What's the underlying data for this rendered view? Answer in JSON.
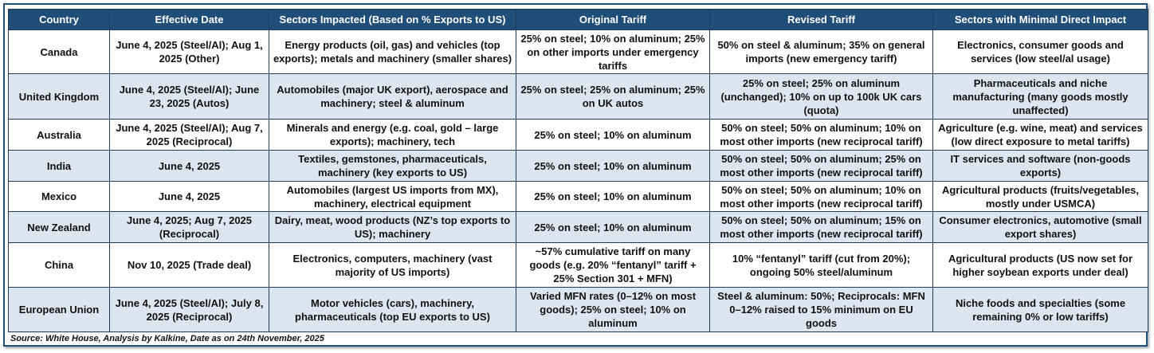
{
  "headers": [
    "Country",
    "Effective Date",
    "Sectors Impacted (Based on % Exports to US)",
    "Original Tariff",
    "Revised Tariff",
    "Sectors with Minimal Direct Impact"
  ],
  "rows": [
    {
      "country": "Canada",
      "date": "June 4, 2025 (Steel/Al); Aug 1, 2025 (Other)",
      "sectors": "Energy products (oil, gas) and vehicles (top exports); metals and machinery (smaller shares)",
      "original": "25% on steel; 10% on aluminum; 25% on other imports under emergency tariffs",
      "revised": "50% on steel & aluminum; 35% on general imports (new emergency tariff)",
      "minimal": "Electronics, consumer goods and services (low steel/al usage)"
    },
    {
      "country": "United Kingdom",
      "date": "June 4, 2025 (Steel/Al); June 23, 2025 (Autos)",
      "sectors": "Automobiles (major UK export), aerospace and machinery; steel & aluminum",
      "original": "25% on steel; 25% on aluminum; 25% on UK autos",
      "revised": "25% on steel; 25% on aluminum (unchanged); 10% on up to 100k UK cars (quota)",
      "minimal": "Pharmaceuticals and niche manufacturing (many goods mostly unaffected)"
    },
    {
      "country": "Australia",
      "date": "June 4, 2025 (Steel/Al); Aug 7, 2025 (Reciprocal)",
      "sectors": "Minerals and energy (e.g. coal, gold – large exports); machinery, tech",
      "original": "25% on steel; 10% on aluminum",
      "revised": "50% on steel; 50% on aluminum; 10% on most other imports (new reciprocal tariff)",
      "minimal": "Agriculture (e.g. wine, meat) and services (low direct exposure to metal tariffs)"
    },
    {
      "country": "India",
      "date": "June 4, 2025",
      "sectors": "Textiles, gemstones, pharmaceuticals, machinery (key exports to US)",
      "original": "25% on steel; 10% on aluminum",
      "revised": "50% on steel; 50% on aluminum; 25% on most other imports (new reciprocal tariff)",
      "minimal": "IT services and software (non-goods exports)"
    },
    {
      "country": "Mexico",
      "date": "June 4, 2025",
      "sectors": "Automobiles (largest US imports from MX), machinery, electrical equipment",
      "original": "25% on steel; 10% on aluminum",
      "revised": "50% on steel; 50% on aluminum; 10% on most other imports (new reciprocal tariff)",
      "minimal": "Agricultural products (fruits/vegetables, mostly under USMCA)"
    },
    {
      "country": "New Zealand",
      "date": "June 4, 2025; Aug 7, 2025 (Reciprocal)",
      "sectors": "Dairy, meat, wood products (NZ’s top exports to US); machinery",
      "original": "25% on steel; 10% on aluminum",
      "revised": "50% on steel; 50% on aluminum; 15% on most other imports (new reciprocal tariff)",
      "minimal": "Consumer electronics, automotive (small export shares)"
    },
    {
      "country": "China",
      "date": "Nov 10, 2025 (Trade deal)",
      "sectors": "Electronics, computers, machinery (vast majority of US imports)",
      "original": "~57% cumulative tariff on many goods (e.g. 20% “fentanyl” tariff + 25% Section 301 + MFN)",
      "revised": "10% “fentanyl” tariff (cut from 20%); ongoing 50% steel/aluminum",
      "minimal": "Agricultural products (US now set for higher soybean exports under deal)"
    },
    {
      "country": "European Union",
      "date": "June 4, 2025 (Steel/Al); July 8, 2025 (Reciprocal)",
      "sectors": "Motor vehicles (cars), machinery, pharmaceuticals (top EU exports to US)",
      "original": "Varied MFN rates (0–12% on most goods); 25% on steel; 10% on aluminum",
      "revised": "Steel & aluminum: 50%; Reciprocals: MFN 0–12% raised to 15% minimum on EU goods",
      "minimal": "Niche foods and specialties (some remaining 0% or low tariffs)"
    }
  ],
  "source": "Source: White House, Analysis by Kalkine, Date as on 24th November, 2025"
}
